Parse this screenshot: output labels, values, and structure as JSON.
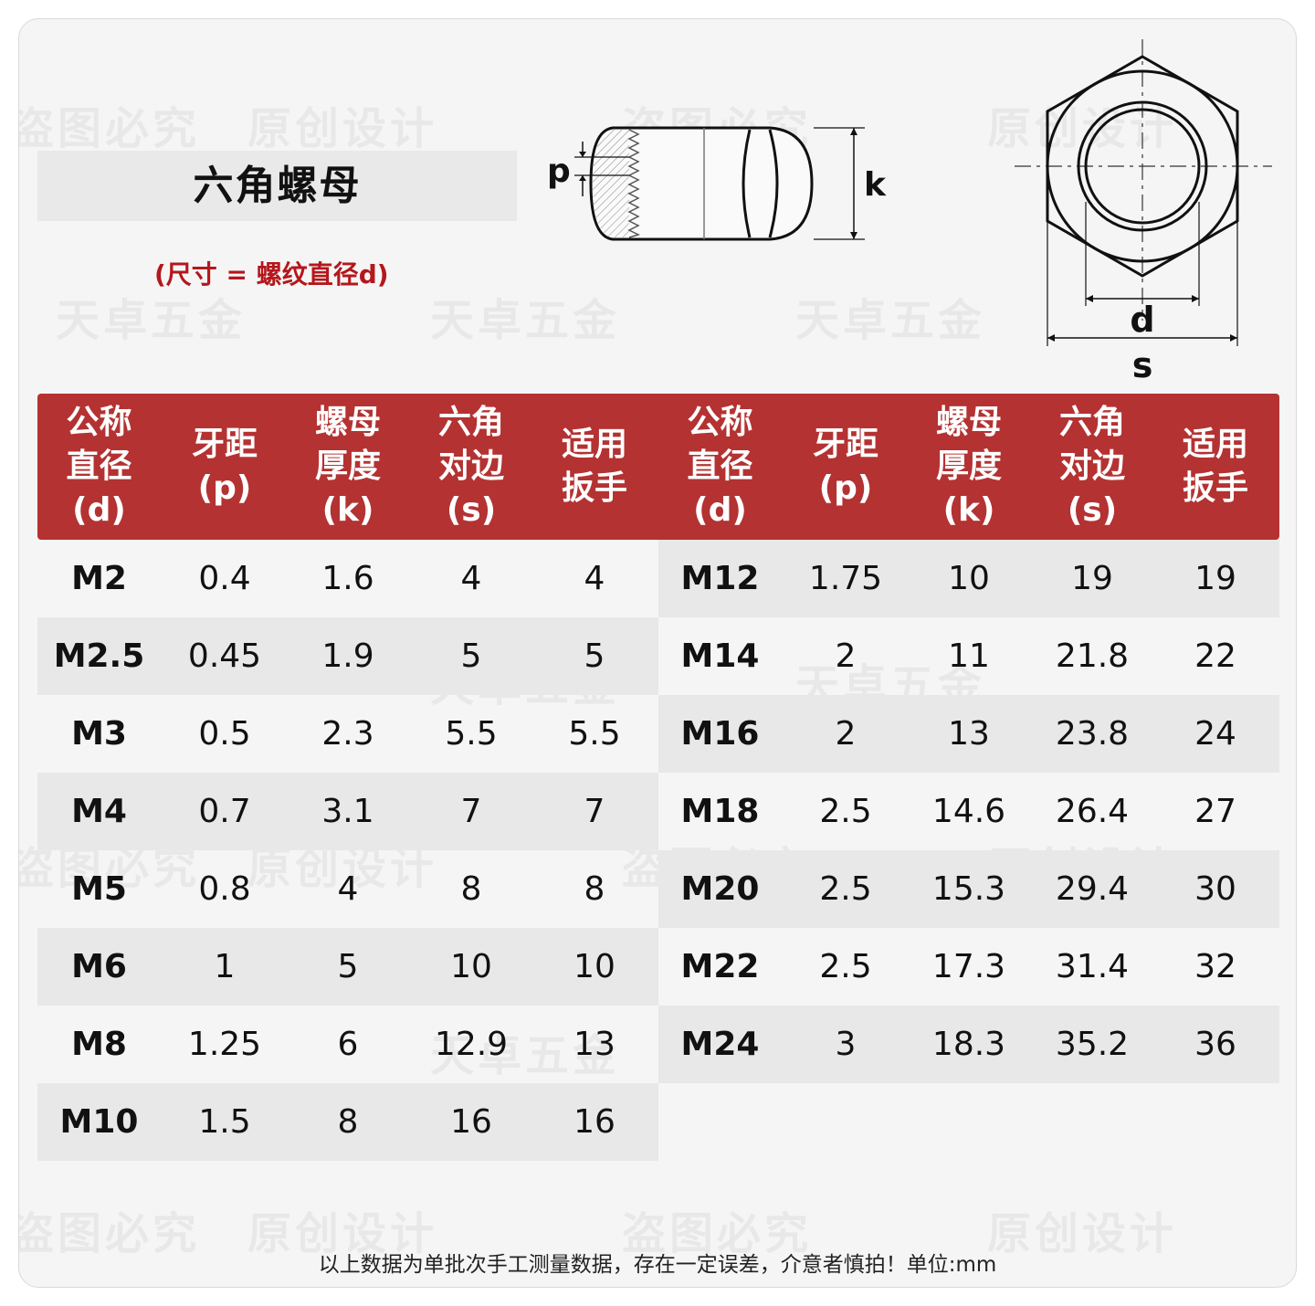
{
  "title": "六角螺母",
  "subtitle": "(尺寸 = 螺纹直径d)",
  "diagram_labels": {
    "p": "p",
    "k": "k",
    "d": "d",
    "s": "s"
  },
  "watermarks": [
    "原创设计",
    "盗图必究",
    "天卓五金"
  ],
  "columns": [
    "公称\n直径\n(d)",
    "牙距\n(p)",
    "螺母\n厚度\n(k)",
    "六角\n对边\n(s)",
    "适用\n扳手"
  ],
  "left_rows": [
    [
      "M2",
      "0.4",
      "1.6",
      "4",
      "4"
    ],
    [
      "M2.5",
      "0.45",
      "1.9",
      "5",
      "5"
    ],
    [
      "M3",
      "0.5",
      "2.3",
      "5.5",
      "5.5"
    ],
    [
      "M4",
      "0.7",
      "3.1",
      "7",
      "7"
    ],
    [
      "M5",
      "0.8",
      "4",
      "8",
      "8"
    ],
    [
      "M6",
      "1",
      "5",
      "10",
      "10"
    ],
    [
      "M8",
      "1.25",
      "6",
      "12.9",
      "13"
    ],
    [
      "M10",
      "1.5",
      "8",
      "16",
      "16"
    ]
  ],
  "right_rows": [
    [
      "M12",
      "1.75",
      "10",
      "19",
      "19"
    ],
    [
      "M14",
      "2",
      "11",
      "21.8",
      "22"
    ],
    [
      "M16",
      "2",
      "13",
      "23.8",
      "24"
    ],
    [
      "M18",
      "2.5",
      "14.6",
      "26.4",
      "27"
    ],
    [
      "M20",
      "2.5",
      "15.3",
      "29.4",
      "30"
    ],
    [
      "M22",
      "2.5",
      "17.3",
      "31.4",
      "32"
    ],
    [
      "M24",
      "3",
      "18.3",
      "35.2",
      "36"
    ]
  ],
  "footer": "以上数据为单批次手工测量数据，存在一定误差，介意者慎拍！单位:mm",
  "colors": {
    "header": "#b43232",
    "subtitle": "#b4171c",
    "shade": "#e8e8e8"
  }
}
